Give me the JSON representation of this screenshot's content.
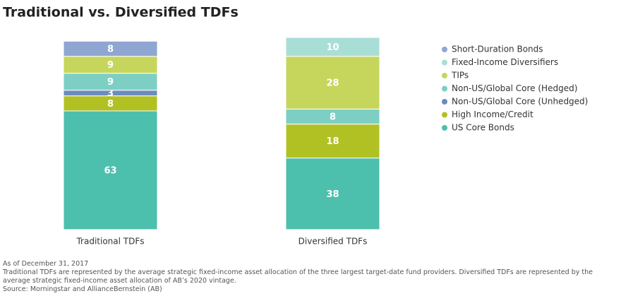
{
  "chart_data": {
    "type": "stacked-bar",
    "title": "Traditional vs. Diversified TDFs",
    "categories": [
      "Traditional TDFs",
      "Diversified TDFs"
    ],
    "series": [
      {
        "name": "Short-Duration Bonds",
        "color": "#8fa6d2",
        "values": [
          8,
          null
        ]
      },
      {
        "name": "Fixed-Income Diversifiers",
        "color": "#a9ded6",
        "values": [
          null,
          10
        ]
      },
      {
        "name": "TIPs",
        "color": "#c6d65c",
        "values": [
          9,
          28
        ]
      },
      {
        "name": "Non-US/Global Core (Hedged)",
        "color": "#7dcfc3",
        "values": [
          9,
          8
        ]
      },
      {
        "name": "Non-US/Global Core (Unhedged)",
        "color": "#6b8cc0",
        "values": [
          3,
          null
        ]
      },
      {
        "name": "High Income/Credit",
        "color": "#b1c123",
        "values": [
          8,
          18
        ]
      },
      {
        "name": "US Core Bonds",
        "color": "#4dbfad",
        "values": [
          63,
          38
        ]
      }
    ],
    "notes": [
      "As of December 31, 2017",
      "Traditional TDFs are represented by the average strategic fixed-income asset allocation of the three largest target-date fund providers. Diversified TDFs are represented by the average strategic fixed-income asset allocation of AB’s 2020 vintage.",
      "Source: Morningstar and AllianceBernstein (AB)"
    ]
  }
}
